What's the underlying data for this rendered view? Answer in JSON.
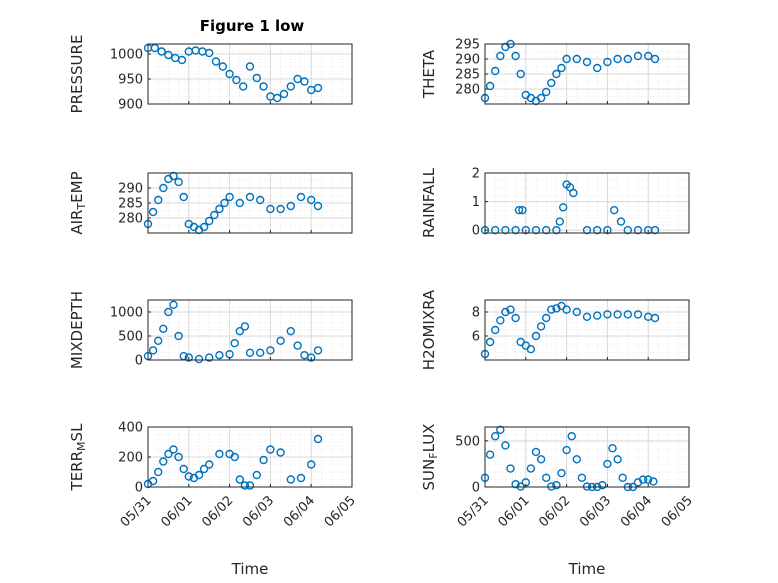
{
  "figure": {
    "title": "Figure 1 low",
    "marker_color": "#0072bd",
    "grid_color": "#d9d9d9",
    "axis_color": "#262626"
  },
  "chart_data": [
    {
      "type": "scatter",
      "ylabel": "PRESSURE",
      "xlabel": "",
      "xlim": [
        "05/31",
        "06/05"
      ],
      "ylim": [
        900,
        1020
      ],
      "yticks": [
        "900",
        "950",
        "1000"
      ],
      "xticks": [],
      "grid": true,
      "x": [
        "05/31 00:00",
        "05/31 04:00",
        "05/31 08:00",
        "05/31 12:00",
        "05/31 16:00",
        "05/31 20:00",
        "06/01 00:00",
        "06/01 04:00",
        "06/01 08:00",
        "06/01 12:00",
        "06/01 16:00",
        "06/01 20:00",
        "06/02 00:00",
        "06/02 04:00",
        "06/02 08:00",
        "06/02 12:00",
        "06/02 16:00",
        "06/02 20:00",
        "06/03 00:00",
        "06/03 04:00",
        "06/03 08:00",
        "06/03 12:00",
        "06/03 16:00",
        "06/03 20:00",
        "06/04 00:00",
        "06/04 04:00"
      ],
      "y": [
        1012,
        1012,
        1005,
        998,
        992,
        988,
        1005,
        1007,
        1005,
        1002,
        985,
        975,
        960,
        948,
        935,
        975,
        952,
        935,
        915,
        912,
        920,
        935,
        950,
        945,
        928,
        932
      ]
    },
    {
      "type": "scatter",
      "ylabel": "THETA",
      "xlabel": "",
      "xlim": [
        "05/31",
        "06/05"
      ],
      "ylim": [
        275,
        295
      ],
      "yticks": [
        "280",
        "285",
        "290",
        "295"
      ],
      "xticks": [],
      "grid": true,
      "x": [
        "05/31 00:00",
        "05/31 03:00",
        "05/31 06:00",
        "05/31 09:00",
        "05/31 12:00",
        "05/31 15:00",
        "05/31 18:00",
        "05/31 21:00",
        "06/01 00:00",
        "06/01 03:00",
        "06/01 06:00",
        "06/01 09:00",
        "06/01 12:00",
        "06/01 15:00",
        "06/01 18:00",
        "06/01 21:00",
        "06/02 00:00",
        "06/02 06:00",
        "06/02 12:00",
        "06/02 18:00",
        "06/03 00:00",
        "06/03 06:00",
        "06/03 12:00",
        "06/03 18:00",
        "06/04 00:00",
        "06/04 04:00"
      ],
      "y": [
        277,
        281,
        286,
        291,
        294,
        295,
        291,
        285,
        278,
        277,
        276,
        277,
        279,
        282,
        285,
        287,
        290,
        290,
        289,
        287,
        289,
        290,
        290,
        291,
        291,
        290
      ]
    },
    {
      "type": "scatter",
      "ylabel": "AIR_TEMP",
      "xlabel": "",
      "xlim": [
        "05/31",
        "06/05"
      ],
      "ylim": [
        275,
        295
      ],
      "yticks": [
        "280",
        "285",
        "290"
      ],
      "xticks": [],
      "grid": true,
      "x": [
        "05/31 00:00",
        "05/31 03:00",
        "05/31 06:00",
        "05/31 09:00",
        "05/31 12:00",
        "05/31 15:00",
        "05/31 18:00",
        "05/31 21:00",
        "06/01 00:00",
        "06/01 03:00",
        "06/01 06:00",
        "06/01 09:00",
        "06/01 12:00",
        "06/01 15:00",
        "06/01 18:00",
        "06/01 21:00",
        "06/02 00:00",
        "06/02 06:00",
        "06/02 12:00",
        "06/02 18:00",
        "06/03 00:00",
        "06/03 06:00",
        "06/03 12:00",
        "06/03 18:00",
        "06/04 00:00",
        "06/04 04:00"
      ],
      "y": [
        278,
        282,
        286,
        290,
        293,
        294,
        292,
        287,
        278,
        277,
        276,
        277,
        279,
        281,
        283,
        285,
        287,
        285,
        287,
        286,
        283,
        283,
        284,
        287,
        286,
        284
      ]
    },
    {
      "type": "scatter",
      "ylabel": "RAINFALL",
      "xlabel": "",
      "xlim": [
        "05/31",
        "06/05"
      ],
      "ylim": [
        -0.1,
        2
      ],
      "yticks": [
        "0",
        "1",
        "2"
      ],
      "xticks": [],
      "grid": true,
      "x": [
        "05/31 00:00",
        "05/31 06:00",
        "05/31 12:00",
        "05/31 18:00",
        "05/31 20:00",
        "05/31 22:00",
        "06/01 00:00",
        "06/01 06:00",
        "06/01 12:00",
        "06/01 18:00",
        "06/01 20:00",
        "06/01 22:00",
        "06/02 00:00",
        "06/02 02:00",
        "06/02 04:00",
        "06/02 12:00",
        "06/02 18:00",
        "06/03 00:00",
        "06/03 04:00",
        "06/03 08:00",
        "06/03 12:00",
        "06/03 18:00",
        "06/04 00:00",
        "06/04 04:00"
      ],
      "y": [
        0,
        0,
        0,
        0,
        0.7,
        0.7,
        0,
        0,
        0,
        0,
        0.3,
        0.8,
        1.6,
        1.5,
        1.3,
        0,
        0,
        0,
        0.7,
        0.3,
        0,
        0,
        0,
        0
      ]
    },
    {
      "type": "scatter",
      "ylabel": "MIXDEPTH",
      "xlabel": "",
      "xlim": [
        "05/31",
        "06/05"
      ],
      "ylim": [
        0,
        1250
      ],
      "yticks": [
        "0",
        "500",
        "1000"
      ],
      "xticks": [],
      "grid": true,
      "x": [
        "05/31 00:00",
        "05/31 03:00",
        "05/31 06:00",
        "05/31 09:00",
        "05/31 12:00",
        "05/31 15:00",
        "05/31 18:00",
        "05/31 21:00",
        "06/01 00:00",
        "06/01 06:00",
        "06/01 12:00",
        "06/01 18:00",
        "06/02 00:00",
        "06/02 03:00",
        "06/02 06:00",
        "06/02 09:00",
        "06/02 12:00",
        "06/02 18:00",
        "06/03 00:00",
        "06/03 06:00",
        "06/03 12:00",
        "06/03 16:00",
        "06/03 20:00",
        "06/04 00:00",
        "06/04 04:00"
      ],
      "y": [
        80,
        200,
        400,
        650,
        1000,
        1150,
        500,
        80,
        50,
        20,
        50,
        100,
        120,
        350,
        600,
        700,
        150,
        150,
        200,
        400,
        600,
        300,
        100,
        50,
        200
      ]
    },
    {
      "type": "scatter",
      "ylabel": "H2OMIXRA",
      "xlabel": "",
      "xlim": [
        "05/31",
        "06/05"
      ],
      "ylim": [
        4,
        9
      ],
      "yticks": [
        "6",
        "8"
      ],
      "xticks": [],
      "grid": true,
      "x": [
        "05/31 00:00",
        "05/31 03:00",
        "05/31 06:00",
        "05/31 09:00",
        "05/31 12:00",
        "05/31 15:00",
        "05/31 18:00",
        "05/31 21:00",
        "06/01 00:00",
        "06/01 03:00",
        "06/01 06:00",
        "06/01 09:00",
        "06/01 12:00",
        "06/01 15:00",
        "06/01 18:00",
        "06/01 21:00",
        "06/02 00:00",
        "06/02 06:00",
        "06/02 12:00",
        "06/02 18:00",
        "06/03 00:00",
        "06/03 06:00",
        "06/03 12:00",
        "06/03 18:00",
        "06/04 00:00",
        "06/04 04:00"
      ],
      "y": [
        4.5,
        5.5,
        6.5,
        7.3,
        8.0,
        8.2,
        7.5,
        5.5,
        5.2,
        4.9,
        6.0,
        6.8,
        7.5,
        8.2,
        8.3,
        8.5,
        8.2,
        8.0,
        7.6,
        7.7,
        7.8,
        7.8,
        7.8,
        7.8,
        7.6,
        7.5
      ]
    },
    {
      "type": "scatter",
      "ylabel": "TERR_MSL",
      "xlabel": "Time",
      "xlim": [
        "05/31",
        "06/05"
      ],
      "ylim": [
        0,
        400
      ],
      "yticks": [
        "0",
        "200",
        "400"
      ],
      "xticks": [
        "05/31",
        "06/01",
        "06/02",
        "06/03",
        "06/04",
        "06/05"
      ],
      "grid": true,
      "x": [
        "05/31 00:00",
        "05/31 03:00",
        "05/31 06:00",
        "05/31 09:00",
        "05/31 12:00",
        "05/31 15:00",
        "05/31 18:00",
        "05/31 21:00",
        "06/01 00:00",
        "06/01 03:00",
        "06/01 06:00",
        "06/01 09:00",
        "06/01 12:00",
        "06/01 18:00",
        "06/02 00:00",
        "06/02 03:00",
        "06/02 06:00",
        "06/02 09:00",
        "06/02 12:00",
        "06/02 16:00",
        "06/02 20:00",
        "06/03 00:00",
        "06/03 06:00",
        "06/03 12:00",
        "06/03 18:00",
        "06/04 00:00",
        "06/04 04:00"
      ],
      "y": [
        20,
        40,
        100,
        170,
        220,
        250,
        200,
        120,
        70,
        60,
        80,
        120,
        150,
        220,
        220,
        200,
        50,
        10,
        10,
        80,
        180,
        250,
        230,
        50,
        60,
        150,
        320
      ]
    },
    {
      "type": "scatter",
      "ylabel": "SUN_FLUX",
      "xlabel": "Time",
      "xlim": [
        "05/31",
        "06/05"
      ],
      "ylim": [
        0,
        650
      ],
      "yticks": [
        "0",
        "500"
      ],
      "xticks": [
        "05/31",
        "06/01",
        "06/02",
        "06/03",
        "06/04",
        "06/05"
      ],
      "grid": true,
      "x": [
        "05/31 00:00",
        "05/31 03:00",
        "05/31 06:00",
        "05/31 09:00",
        "05/31 12:00",
        "05/31 15:00",
        "05/31 18:00",
        "05/31 21:00",
        "06/01 00:00",
        "06/01 03:00",
        "06/01 06:00",
        "06/01 09:00",
        "06/01 12:00",
        "06/01 15:00",
        "06/01 18:00",
        "06/01 21:00",
        "06/02 00:00",
        "06/02 03:00",
        "06/02 06:00",
        "06/02 09:00",
        "06/02 12:00",
        "06/02 15:00",
        "06/02 18:00",
        "06/02 21:00",
        "06/03 00:00",
        "06/03 03:00",
        "06/03 06:00",
        "06/03 09:00",
        "06/03 12:00",
        "06/03 15:00",
        "06/03 18:00",
        "06/03 21:00",
        "06/04 00:00",
        "06/04 03:00"
      ],
      "y": [
        100,
        350,
        550,
        620,
        450,
        200,
        30,
        5,
        50,
        200,
        380,
        300,
        100,
        5,
        20,
        150,
        400,
        550,
        300,
        100,
        5,
        0,
        0,
        20,
        250,
        420,
        300,
        100,
        0,
        0,
        50,
        80,
        80,
        60
      ]
    }
  ]
}
